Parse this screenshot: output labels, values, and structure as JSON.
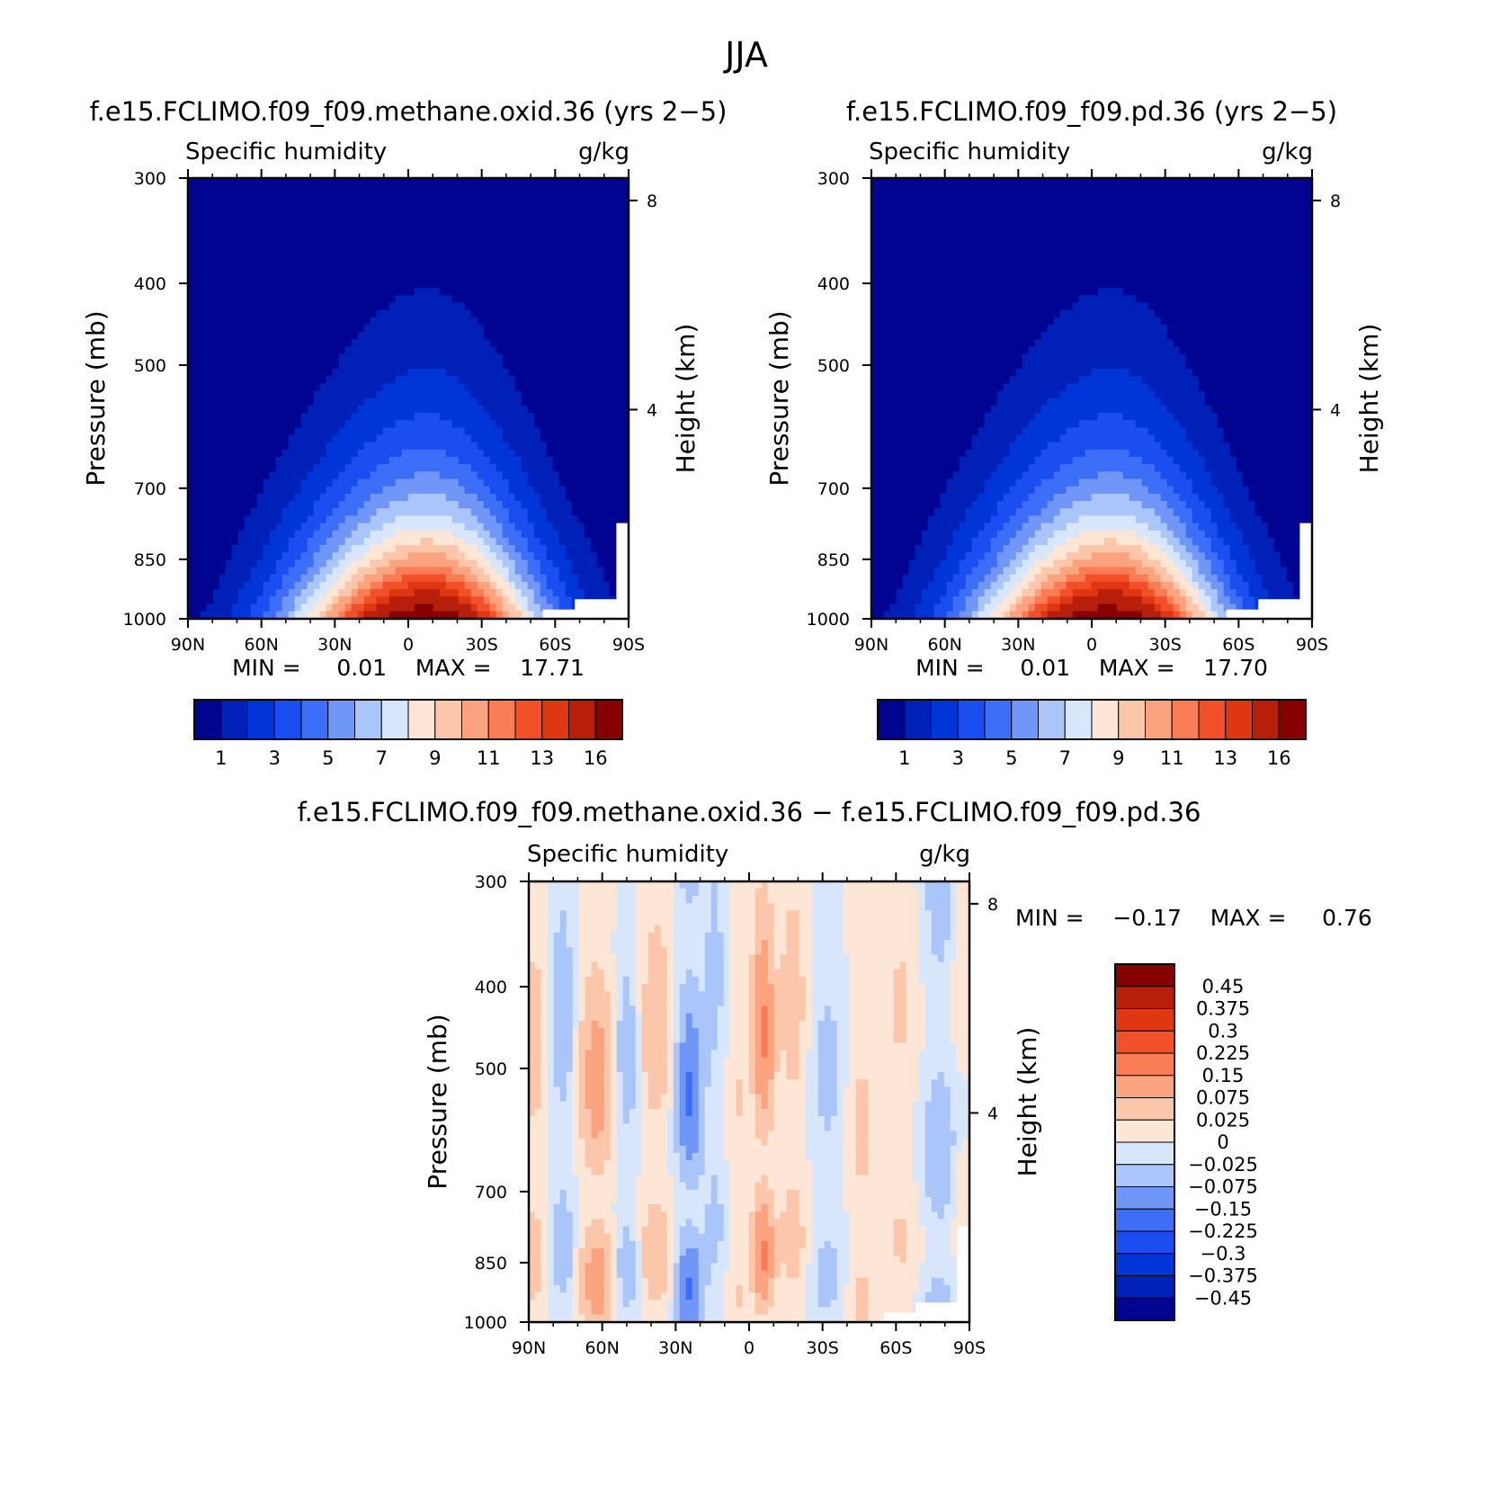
{
  "figure": {
    "title": "JJA"
  },
  "panels": [
    {
      "id": "panel-1",
      "case_title": "f.e15.FCLIMO.f09_f09.methane.oxid.36 (yrs 2−5)",
      "variable": "Specific humidity",
      "units": "g/kg",
      "ylabel": "Pressure (mb)",
      "ylabel_right": "Height (km)",
      "stats": "MIN =     0.01    MAX =    17.71"
    },
    {
      "id": "panel-2",
      "case_title": "f.e15.FCLIMO.f09_f09.pd.36 (yrs 2−5)",
      "variable": "Specific humidity",
      "units": "g/kg",
      "ylabel": "Pressure (mb)",
      "ylabel_right": "Height (km)",
      "stats": "MIN =     0.01    MAX =    17.70"
    },
    {
      "id": "panel-3",
      "case_title": "f.e15.FCLIMO.f09_f09.methane.oxid.36 − f.e15.FCLIMO.f09_f09.pd.36",
      "variable": "Specific humidity",
      "units": "g/kg",
      "ylabel": "Pressure (mb)",
      "ylabel_right": "Height (km)",
      "stats": "MIN =    −0.17    MAX =     0.76"
    }
  ],
  "chart_data": [
    {
      "type": "heatmap",
      "title": "f.e15.FCLIMO.f09_f09.methane.oxid.36 (yrs 2−5)",
      "variable": "Specific humidity",
      "units": "g/kg",
      "x_ticks": [
        "90N",
        "60N",
        "30N",
        "0",
        "30S",
        "60S",
        "90S"
      ],
      "x_values": [
        90,
        60,
        30,
        0,
        -30,
        -60,
        -90
      ],
      "xlim": [
        90,
        -90
      ],
      "y_ticks": [
        "300",
        "400",
        "500",
        "700",
        "850",
        "1000"
      ],
      "y_values": [
        300,
        400,
        500,
        700,
        850,
        1000
      ],
      "ylim": [
        1000,
        300
      ],
      "y_scale": "log",
      "y2_ticks": [
        "8",
        "4"
      ],
      "y2_values": [
        8,
        4
      ],
      "min": 0.01,
      "max": 17.71,
      "colorbar": {
        "orientation": "horizontal",
        "labels": [
          "1",
          "3",
          "5",
          "7",
          "9",
          "11",
          "13",
          "16"
        ],
        "levels": [
          1,
          2,
          3,
          4,
          5,
          6,
          7,
          8,
          9,
          10,
          11,
          12,
          13,
          14,
          16
        ],
        "colors": [
          "#000590",
          "#0021b8",
          "#0035d8",
          "#1a4ef0",
          "#3d6ef8",
          "#7096f8",
          "#a9c5fa",
          "#d8e6fb",
          "#fde6d5",
          "#fcc6ab",
          "#fba27e",
          "#f97c54",
          "#f1502a",
          "#df3712",
          "#b81f0a",
          "#870000"
        ]
      },
      "field_peak_lat": -8,
      "field_peak_value": 17.71
    },
    {
      "type": "heatmap",
      "title": "f.e15.FCLIMO.f09_f09.pd.36 (yrs 2−5)",
      "variable": "Specific humidity",
      "units": "g/kg",
      "x_ticks": [
        "90N",
        "60N",
        "30N",
        "0",
        "30S",
        "60S",
        "90S"
      ],
      "x_values": [
        90,
        60,
        30,
        0,
        -30,
        -60,
        -90
      ],
      "xlim": [
        90,
        -90
      ],
      "y_ticks": [
        "300",
        "400",
        "500",
        "700",
        "850",
        "1000"
      ],
      "y_values": [
        300,
        400,
        500,
        700,
        850,
        1000
      ],
      "ylim": [
        1000,
        300
      ],
      "y_scale": "log",
      "y2_ticks": [
        "8",
        "4"
      ],
      "y2_values": [
        8,
        4
      ],
      "min": 0.01,
      "max": 17.7,
      "colorbar": {
        "orientation": "horizontal",
        "labels": [
          "1",
          "3",
          "5",
          "7",
          "9",
          "11",
          "13",
          "16"
        ],
        "levels": [
          1,
          2,
          3,
          4,
          5,
          6,
          7,
          8,
          9,
          10,
          11,
          12,
          13,
          14,
          16
        ],
        "colors": [
          "#000590",
          "#0021b8",
          "#0035d8",
          "#1a4ef0",
          "#3d6ef8",
          "#7096f8",
          "#a9c5fa",
          "#d8e6fb",
          "#fde6d5",
          "#fcc6ab",
          "#fba27e",
          "#f97c54",
          "#f1502a",
          "#df3712",
          "#b81f0a",
          "#870000"
        ]
      },
      "field_peak_lat": -8,
      "field_peak_value": 17.7
    },
    {
      "type": "heatmap",
      "title": "f.e15.FCLIMO.f09_f09.methane.oxid.36 − f.e15.FCLIMO.f09_f09.pd.36",
      "variable": "Specific humidity",
      "units": "g/kg",
      "x_ticks": [
        "90N",
        "60N",
        "30N",
        "0",
        "30S",
        "60S",
        "90S"
      ],
      "x_values": [
        90,
        60,
        30,
        0,
        -30,
        -60,
        -90
      ],
      "xlim": [
        90,
        -90
      ],
      "y_ticks": [
        "300",
        "400",
        "500",
        "700",
        "850",
        "1000"
      ],
      "y_values": [
        300,
        400,
        500,
        700,
        850,
        1000
      ],
      "ylim": [
        1000,
        300
      ],
      "y_scale": "log",
      "y2_ticks": [
        "8",
        "4"
      ],
      "y2_values": [
        8,
        4
      ],
      "min": -0.17,
      "max": 0.76,
      "colorbar": {
        "orientation": "vertical",
        "labels": [
          "0.45",
          "0.375",
          "0.3",
          "0.225",
          "0.15",
          "0.075",
          "0.025",
          "0",
          "−0.025",
          "−0.075",
          "−0.15",
          "−0.225",
          "−0.3",
          "−0.375",
          "−0.45"
        ],
        "levels": [
          0.45,
          0.375,
          0.3,
          0.225,
          0.15,
          0.075,
          0.025,
          0,
          -0.025,
          -0.075,
          -0.15,
          -0.225,
          -0.3,
          -0.375,
          -0.45
        ],
        "colors": [
          "#870000",
          "#b81f0a",
          "#df3712",
          "#f1502a",
          "#f97c54",
          "#fba27e",
          "#fcc6ab",
          "#fde6d5",
          "#d8e6fb",
          "#a9c5fa",
          "#7096f8",
          "#3d6ef8",
          "#1a4ef0",
          "#0035d8",
          "#0021b8",
          "#000590"
        ]
      },
      "difference_bands": [
        {
          "lat": 88,
          "width": 4,
          "value": 0.05
        },
        {
          "lat": 76,
          "width": 4,
          "value": -0.06
        },
        {
          "lat": 62,
          "width": 6,
          "value": 0.12
        },
        {
          "lat": 50,
          "width": 5,
          "value": -0.05
        },
        {
          "lat": 38,
          "width": 6,
          "value": 0.06
        },
        {
          "lat": 24,
          "width": 5,
          "value": -0.16
        },
        {
          "lat": 14,
          "width": 4,
          "value": -0.04
        },
        {
          "lat": 5,
          "width": 3,
          "value": 0.03
        },
        {
          "lat": -6,
          "width": 4,
          "value": 0.16
        },
        {
          "lat": -18,
          "width": 5,
          "value": 0.05
        },
        {
          "lat": -32,
          "width": 6,
          "value": -0.04
        },
        {
          "lat": -46,
          "width": 5,
          "value": 0.04
        },
        {
          "lat": -62,
          "width": 6,
          "value": 0.03
        },
        {
          "lat": -78,
          "width": 6,
          "value": -0.07
        },
        {
          "lat": -86,
          "width": 3,
          "value": 0.02
        }
      ]
    }
  ]
}
